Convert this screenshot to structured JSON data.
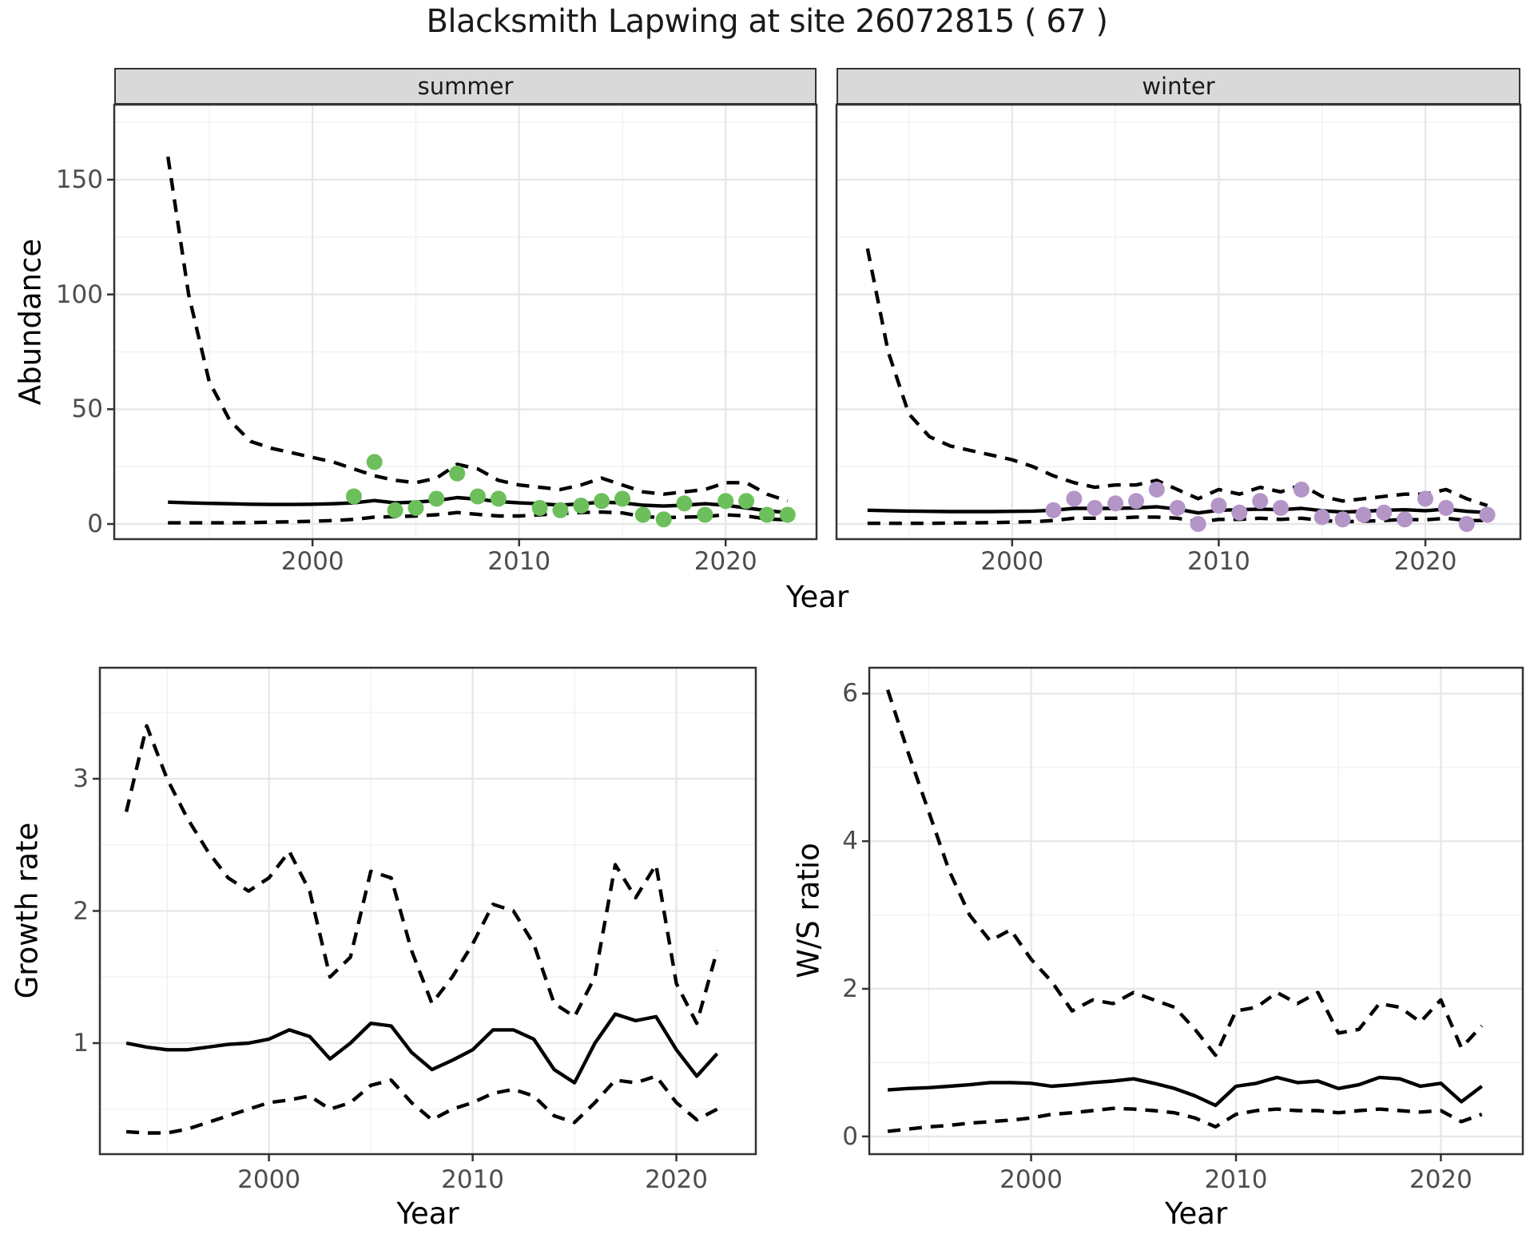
{
  "labels": {
    "title": "Blacksmith Lapwing at site 26072815 ( 67 )",
    "year_axis": "Year",
    "abundance_axis": "Abundance",
    "growth_axis": "Growth rate",
    "ws_axis": "W/S ratio",
    "facet_summer": "summer",
    "facet_winter": "winter"
  },
  "colors": {
    "point_summer": "#6cbf5b",
    "point_winter": "#b495c8",
    "line": "#000000",
    "strip_bg": "#d9d9d9",
    "panel_border": "#333333",
    "grid_major": "#e6e6e6",
    "grid_minor": "#f2f2f2",
    "tick_text": "#4d4d4d",
    "background": "#ffffff"
  },
  "chart_data": [
    {
      "id": "summer",
      "type": "line+scatter",
      "title": "summer",
      "xlabel": "Year",
      "ylabel": "Abundance",
      "xlim": [
        1990.4,
        2024.4
      ],
      "ylim": [
        -6.6,
        182.7
      ],
      "xticks": [
        2000,
        2010,
        2020
      ],
      "xtick_labels": [
        "2000",
        "2010",
        "2020"
      ],
      "yticks": [
        0,
        50,
        100,
        150
      ],
      "ytick_labels": [
        "0",
        "50",
        "100",
        "150"
      ],
      "x_minor": [
        1995,
        2005,
        2015
      ],
      "y_minor": [
        25,
        75,
        125,
        175
      ],
      "x": [
        1993,
        1994,
        1995,
        1996,
        1997,
        1998,
        1999,
        2000,
        2001,
        2002,
        2003,
        2004,
        2005,
        2006,
        2007,
        2008,
        2009,
        2010,
        2011,
        2012,
        2013,
        2014,
        2015,
        2016,
        2017,
        2018,
        2019,
        2020,
        2021,
        2022,
        2023
      ],
      "series": [
        {
          "name": "upper_ci",
          "style": "dashed",
          "values": [
            160,
            100,
            62,
            45,
            36,
            33,
            31,
            29,
            27,
            24,
            21,
            19,
            18,
            20,
            26,
            24,
            19,
            17,
            16,
            15,
            17,
            20,
            17,
            14,
            13,
            14,
            15,
            18,
            18,
            13,
            10
          ]
        },
        {
          "name": "median",
          "style": "solid",
          "values": [
            9.5,
            9.2,
            9.0,
            8.8,
            8.6,
            8.5,
            8.5,
            8.6,
            8.8,
            9.2,
            10.2,
            9.2,
            9.5,
            10.2,
            11.5,
            10.8,
            9.8,
            9.2,
            8.8,
            8.2,
            8.8,
            9.5,
            9.2,
            8.2,
            7.8,
            8.2,
            8.8,
            8.2,
            7.0,
            5.8,
            5.0
          ]
        },
        {
          "name": "lower_ci",
          "style": "dashed",
          "values": [
            0.5,
            0.5,
            0.5,
            0.5,
            0.6,
            0.8,
            1.0,
            1.2,
            1.5,
            2.0,
            3.0,
            3.2,
            3.5,
            4.0,
            5.0,
            4.2,
            3.5,
            3.5,
            4.0,
            4.5,
            5.0,
            5.2,
            4.8,
            3.2,
            2.8,
            3.0,
            3.2,
            4.0,
            3.5,
            2.2,
            1.8
          ]
        }
      ],
      "points": {
        "name": "observed_counts",
        "color": "#6cbf5b",
        "x": [
          2002,
          2003,
          2004,
          2005,
          2006,
          2007,
          2008,
          2009,
          2011,
          2012,
          2013,
          2014,
          2015,
          2016,
          2017,
          2018,
          2019,
          2020,
          2021,
          2022,
          2023
        ],
        "y": [
          12,
          27,
          6,
          7,
          11,
          22,
          12,
          11,
          7,
          6,
          8,
          10,
          11,
          4,
          2,
          9,
          4,
          10,
          10,
          4,
          4
        ]
      }
    },
    {
      "id": "winter",
      "type": "line+scatter",
      "title": "winter",
      "xlabel": "Year",
      "ylabel": "Abundance",
      "xlim": [
        1991.5,
        2024.6
      ],
      "ylim": [
        -6.6,
        182.7
      ],
      "xticks": [
        2000,
        2010,
        2020
      ],
      "xtick_labels": [
        "2000",
        "2010",
        "2020"
      ],
      "yticks": [
        0,
        50,
        100,
        150
      ],
      "ytick_labels": [
        "0",
        "50",
        "100",
        "150"
      ],
      "x_minor": [
        1995,
        2005,
        2015
      ],
      "y_minor": [
        25,
        75,
        125,
        175
      ],
      "x": [
        1993,
        1994,
        1995,
        1996,
        1997,
        1998,
        1999,
        2000,
        2001,
        2002,
        2003,
        2004,
        2005,
        2006,
        2007,
        2008,
        2009,
        2010,
        2011,
        2012,
        2013,
        2014,
        2015,
        2016,
        2017,
        2018,
        2019,
        2020,
        2021,
        2022,
        2023
      ],
      "series": [
        {
          "name": "upper_ci",
          "style": "dashed",
          "values": [
            120,
            75,
            48,
            38,
            34,
            32,
            30,
            28,
            25,
            21,
            18,
            16,
            17,
            17,
            19,
            15,
            11,
            15,
            13,
            16,
            14,
            17,
            12,
            10,
            11,
            12,
            13,
            13,
            15,
            11,
            8
          ]
        },
        {
          "name": "median",
          "style": "solid",
          "values": [
            6.0,
            5.8,
            5.6,
            5.5,
            5.4,
            5.4,
            5.4,
            5.5,
            5.6,
            6.0,
            6.8,
            6.8,
            6.8,
            7.0,
            7.5,
            6.5,
            4.8,
            6.0,
            6.2,
            6.5,
            6.2,
            6.8,
            5.8,
            5.2,
            5.5,
            6.0,
            6.2,
            5.8,
            6.5,
            5.5,
            5.0
          ]
        },
        {
          "name": "lower_ci",
          "style": "dashed",
          "values": [
            0.3,
            0.3,
            0.3,
            0.3,
            0.4,
            0.5,
            0.6,
            0.8,
            1.0,
            1.5,
            2.5,
            2.5,
            2.5,
            3.0,
            3.0,
            2.5,
            0.8,
            2.0,
            2.0,
            2.5,
            2.0,
            2.5,
            1.5,
            1.0,
            1.2,
            1.5,
            2.0,
            1.8,
            2.5,
            1.5,
            1.5
          ]
        }
      ],
      "points": {
        "name": "observed_counts",
        "color": "#b495c8",
        "x": [
          2002,
          2003,
          2004,
          2005,
          2006,
          2007,
          2008,
          2009,
          2010,
          2011,
          2012,
          2013,
          2014,
          2015,
          2016,
          2017,
          2018,
          2019,
          2020,
          2021,
          2022,
          2023
        ],
        "y": [
          6,
          11,
          7,
          9,
          10,
          15,
          7,
          0,
          8,
          5,
          10,
          7,
          15,
          3,
          2,
          4,
          5,
          2,
          11,
          7,
          0,
          4
        ]
      }
    },
    {
      "id": "growth",
      "type": "line",
      "title": "",
      "xlabel": "Year",
      "ylabel": "Growth rate",
      "xlim": [
        1991.7,
        2023.9
      ],
      "ylim": [
        0.16,
        3.84
      ],
      "xticks": [
        2000,
        2010,
        2020
      ],
      "xtick_labels": [
        "2000",
        "2010",
        "2020"
      ],
      "yticks": [
        1,
        2,
        3
      ],
      "ytick_labels": [
        "1",
        "2",
        "3"
      ],
      "x_minor": [
        1995,
        2005,
        2015
      ],
      "y_minor": [
        0.5,
        1.5,
        2.5,
        3.5
      ],
      "x": [
        1993,
        1994,
        1995,
        1996,
        1997,
        1998,
        1999,
        2000,
        2001,
        2002,
        2003,
        2004,
        2005,
        2006,
        2007,
        2008,
        2009,
        2010,
        2011,
        2012,
        2013,
        2014,
        2015,
        2016,
        2017,
        2018,
        2019,
        2020,
        2021,
        2022
      ],
      "series": [
        {
          "name": "upper_ci",
          "style": "dashed",
          "values": [
            2.75,
            3.4,
            3.0,
            2.7,
            2.45,
            2.25,
            2.15,
            2.25,
            2.45,
            2.15,
            1.5,
            1.65,
            2.3,
            2.25,
            1.7,
            1.3,
            1.5,
            1.75,
            2.05,
            2.0,
            1.75,
            1.3,
            1.2,
            1.5,
            2.35,
            2.1,
            2.35,
            1.45,
            1.15,
            1.7
          ]
        },
        {
          "name": "median",
          "style": "solid",
          "values": [
            1.0,
            0.97,
            0.95,
            0.95,
            0.97,
            0.99,
            1.0,
            1.03,
            1.1,
            1.05,
            0.88,
            1.0,
            1.15,
            1.13,
            0.93,
            0.8,
            0.87,
            0.95,
            1.1,
            1.1,
            1.03,
            0.8,
            0.7,
            1.0,
            1.22,
            1.17,
            1.2,
            0.95,
            0.75,
            0.92
          ]
        },
        {
          "name": "lower_ci",
          "style": "dashed",
          "values": [
            0.33,
            0.32,
            0.32,
            0.35,
            0.4,
            0.45,
            0.5,
            0.55,
            0.57,
            0.6,
            0.5,
            0.55,
            0.68,
            0.72,
            0.55,
            0.42,
            0.5,
            0.55,
            0.62,
            0.65,
            0.6,
            0.45,
            0.4,
            0.55,
            0.72,
            0.7,
            0.75,
            0.55,
            0.42,
            0.5
          ]
        }
      ]
    },
    {
      "id": "ws",
      "type": "line",
      "title": "",
      "xlabel": "Year",
      "ylabel": "W/S ratio",
      "xlim": [
        1992.1,
        2024.0
      ],
      "ylim": [
        -0.24,
        6.35
      ],
      "xticks": [
        2000,
        2010,
        2020
      ],
      "xtick_labels": [
        "2000",
        "2010",
        "2020"
      ],
      "yticks": [
        0,
        2,
        4,
        6
      ],
      "ytick_labels": [
        "0",
        "2",
        "4",
        "6"
      ],
      "x_minor": [
        1995,
        2005,
        2015
      ],
      "y_minor": [
        1,
        3,
        5
      ],
      "x": [
        1993,
        1994,
        1995,
        1996,
        1997,
        1998,
        1999,
        2000,
        2001,
        2002,
        2003,
        2004,
        2005,
        2006,
        2007,
        2008,
        2009,
        2010,
        2011,
        2012,
        2013,
        2014,
        2015,
        2016,
        2017,
        2018,
        2019,
        2020,
        2021,
        2022
      ],
      "series": [
        {
          "name": "upper_ci",
          "style": "dashed",
          "values": [
            6.05,
            5.2,
            4.4,
            3.6,
            3.0,
            2.65,
            2.8,
            2.4,
            2.1,
            1.7,
            1.85,
            1.8,
            1.95,
            1.85,
            1.75,
            1.45,
            1.1,
            1.7,
            1.75,
            1.95,
            1.8,
            1.95,
            1.4,
            1.45,
            1.8,
            1.75,
            1.55,
            1.85,
            1.2,
            1.5
          ]
        },
        {
          "name": "median",
          "style": "solid",
          "values": [
            0.63,
            0.65,
            0.66,
            0.68,
            0.7,
            0.73,
            0.73,
            0.72,
            0.68,
            0.7,
            0.73,
            0.75,
            0.78,
            0.72,
            0.65,
            0.55,
            0.42,
            0.68,
            0.72,
            0.8,
            0.73,
            0.75,
            0.65,
            0.7,
            0.8,
            0.78,
            0.68,
            0.72,
            0.47,
            0.68
          ]
        },
        {
          "name": "lower_ci",
          "style": "dashed",
          "values": [
            0.07,
            0.1,
            0.13,
            0.15,
            0.18,
            0.2,
            0.22,
            0.25,
            0.3,
            0.32,
            0.35,
            0.38,
            0.37,
            0.35,
            0.32,
            0.25,
            0.13,
            0.3,
            0.35,
            0.37,
            0.35,
            0.35,
            0.32,
            0.35,
            0.37,
            0.35,
            0.33,
            0.35,
            0.2,
            0.3
          ]
        }
      ]
    }
  ]
}
